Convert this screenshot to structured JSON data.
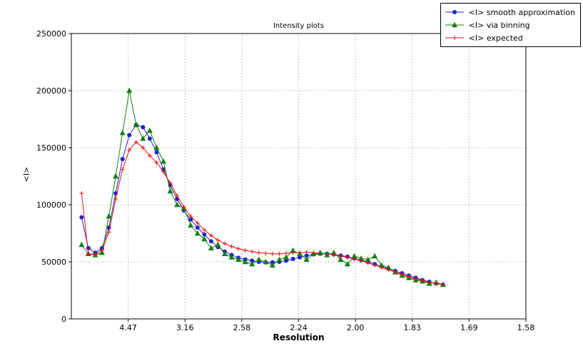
{
  "chart_data": {
    "type": "line",
    "title": "Intensity plots",
    "xlabel": "Resolution",
    "ylabel": "<I>",
    "grid": "dotted",
    "legend_position": "top-right",
    "x_axis": {
      "scale": "resolution (d), linear in 1/d^2",
      "range": [
        0,
        0.4
      ],
      "ticks": [
        {
          "value": 0.05,
          "label": "4.47"
        },
        {
          "value": 0.1,
          "label": "3.16"
        },
        {
          "value": 0.15,
          "label": "2.58"
        },
        {
          "value": 0.2,
          "label": "2.24"
        },
        {
          "value": 0.25,
          "label": "2.00"
        },
        {
          "value": 0.3,
          "label": "1.83"
        },
        {
          "value": 0.35,
          "label": "1.69"
        },
        {
          "value": 0.4,
          "label": "1.58"
        }
      ]
    },
    "y_axis": {
      "range": [
        0,
        250000
      ],
      "ticks": [
        {
          "value": 0,
          "label": "0"
        },
        {
          "value": 50000,
          "label": "50000"
        },
        {
          "value": 100000,
          "label": "100000"
        },
        {
          "value": 150000,
          "label": "150000"
        },
        {
          "value": 200000,
          "label": "200000"
        },
        {
          "value": 250000,
          "label": "250000"
        }
      ]
    },
    "x": [
      0.009,
      0.015,
      0.021,
      0.027,
      0.033,
      0.039,
      0.045,
      0.051,
      0.057,
      0.063,
      0.069,
      0.075,
      0.081,
      0.087,
      0.093,
      0.099,
      0.105,
      0.111,
      0.117,
      0.123,
      0.129,
      0.135,
      0.141,
      0.147,
      0.153,
      0.159,
      0.165,
      0.171,
      0.177,
      0.183,
      0.189,
      0.195,
      0.201,
      0.207,
      0.213,
      0.219,
      0.225,
      0.231,
      0.237,
      0.243,
      0.249,
      0.255,
      0.261,
      0.267,
      0.273,
      0.279,
      0.285,
      0.291,
      0.297,
      0.303,
      0.309,
      0.315,
      0.321,
      0.327
    ],
    "series": [
      {
        "name": "<I> smooth approximation",
        "color": "#2222cc",
        "marker": "circle",
        "values": [
          89000,
          62000,
          58000,
          62000,
          80000,
          110000,
          140000,
          161000,
          170000,
          168000,
          158000,
          146000,
          131000,
          117000,
          105000,
          95000,
          87000,
          80000,
          74000,
          68000,
          63000,
          59000,
          56000,
          53500,
          52000,
          51000,
          50000,
          49500,
          49500,
          50000,
          51000,
          52500,
          54000,
          55500,
          56500,
          57000,
          57000,
          56500,
          55500,
          54500,
          53000,
          51500,
          50000,
          48000,
          46000,
          44000,
          42000,
          40000,
          38000,
          36000,
          34000,
          32500,
          31000,
          30000
        ]
      },
      {
        "name": "<I> via binning",
        "color": "#118011",
        "marker": "triangle",
        "values": [
          65000,
          57000,
          56000,
          58000,
          90000,
          125000,
          163000,
          200000,
          170000,
          158000,
          165000,
          150000,
          138000,
          112000,
          100000,
          97000,
          82000,
          75000,
          70000,
          62000,
          65000,
          57000,
          54000,
          52000,
          50000,
          48000,
          52000,
          50000,
          47000,
          52000,
          54000,
          60000,
          57000,
          52000,
          57000,
          58000,
          56000,
          58000,
          52000,
          48000,
          55000,
          53000,
          52000,
          55000,
          47000,
          45000,
          41000,
          38000,
          36000,
          34000,
          33000,
          31000,
          32000,
          30000
        ]
      },
      {
        "name": "<I> expected",
        "color": "#ee1111",
        "marker": "plus",
        "values": [
          110000,
          57000,
          56500,
          60000,
          76000,
          105000,
          131000,
          148000,
          155000,
          150000,
          143000,
          137000,
          129000,
          119000,
          108000,
          98000,
          90000,
          84000,
          78000,
          73000,
          69000,
          66000,
          63500,
          61500,
          60000,
          59000,
          58000,
          57500,
          57000,
          57000,
          57500,
          58000,
          58000,
          58500,
          58000,
          57500,
          57000,
          56000,
          55000,
          54000,
          52500,
          51000,
          49000,
          47000,
          45000,
          43000,
          41000,
          39000,
          37000,
          35000,
          33500,
          32000,
          31000,
          30000
        ]
      }
    ]
  }
}
